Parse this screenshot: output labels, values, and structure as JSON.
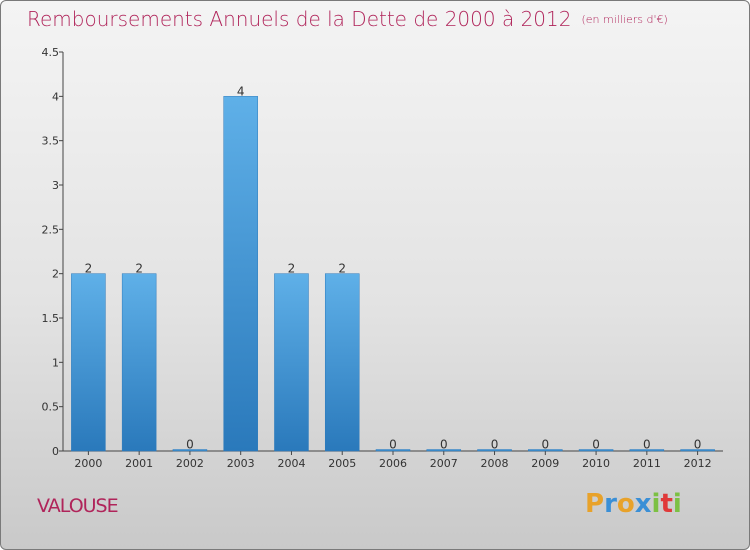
{
  "header": {
    "title": "Remboursements Annuels de la Dette de 2000 à 2012",
    "unit": "(en milliers d'€)"
  },
  "footer": {
    "commune": "VALOUSE",
    "brand": "Proxiti",
    "brand_colors": [
      "#e8a22a",
      "#3a8fd6",
      "#e8a22a",
      "#3a8fd6",
      "#7cc043",
      "#e03a3a",
      "#7cc043"
    ]
  },
  "colors": {
    "bar": "#3f95d6",
    "bar_light": "#5fb0e8",
    "bar_dark": "#2a79bb",
    "title": "#b0245a"
  },
  "chart_data": {
    "type": "bar",
    "categories": [
      "2000",
      "2001",
      "2002",
      "2003",
      "2004",
      "2005",
      "2006",
      "2007",
      "2008",
      "2009",
      "2010",
      "2011",
      "2012"
    ],
    "values": [
      2,
      2,
      0,
      4,
      2,
      2,
      0,
      0,
      0,
      0,
      0,
      0,
      0
    ],
    "data_labels": [
      "2",
      "2",
      "0",
      "4",
      "2",
      "2",
      "0",
      "0",
      "0",
      "0",
      "0",
      "0",
      "0"
    ],
    "yticks": [
      "0",
      "0.5",
      "1",
      "1.5",
      "2",
      "2.5",
      "3",
      "3.5",
      "4",
      "4.5"
    ],
    "ytick_values": [
      0,
      0.5,
      1,
      1.5,
      2,
      2.5,
      3,
      3.5,
      4,
      4.5
    ],
    "ylim": [
      0,
      4.5
    ],
    "grid": false,
    "title": "Remboursements Annuels de la Dette de 2000 à 2012",
    "xlabel": "",
    "ylabel": ""
  }
}
